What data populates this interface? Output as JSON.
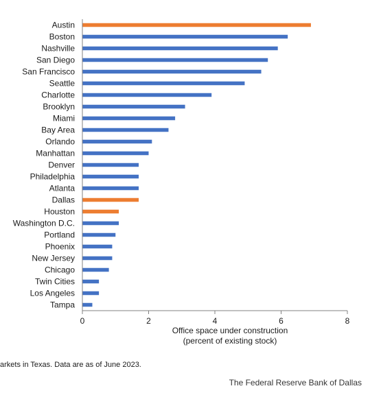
{
  "chart_data": {
    "type": "bar",
    "orientation": "horizontal",
    "categories": [
      "Austin",
      "Boston",
      "Nashville",
      "San Diego",
      "San Francisco",
      "Seattle",
      "Charlotte",
      "Brooklyn",
      "Miami",
      "Bay Area",
      "Orlando",
      "Manhattan",
      "Denver",
      "Philadelphia",
      "Atlanta",
      "Dallas",
      "Houston",
      "Washington D.C.",
      "Portland",
      "Phoenix",
      "New Jersey",
      "Chicago",
      "Twin Cities",
      "Los Angeles",
      "Tampa"
    ],
    "values": [
      6.9,
      6.2,
      5.9,
      5.6,
      5.4,
      4.9,
      3.9,
      3.1,
      2.8,
      2.6,
      2.1,
      2.0,
      1.7,
      1.7,
      1.7,
      1.7,
      1.1,
      1.1,
      1.0,
      0.9,
      0.9,
      0.8,
      0.5,
      0.5,
      0.3
    ],
    "highlighted": [
      "Austin",
      "Dallas",
      "Houston"
    ],
    "colors": {
      "default": "#4472c4",
      "highlight": "#ed7d31"
    },
    "xlabel_line1": "Office space under construction",
    "xlabel_line2": "(percent of existing stock)",
    "xlim": [
      0,
      8
    ],
    "xticks": [
      0,
      2,
      4,
      6,
      8
    ],
    "grid": false
  },
  "footnote": "arkets in Texas. Data are as of June 2023.",
  "source": "The Federal Reserve Bank of Dallas"
}
